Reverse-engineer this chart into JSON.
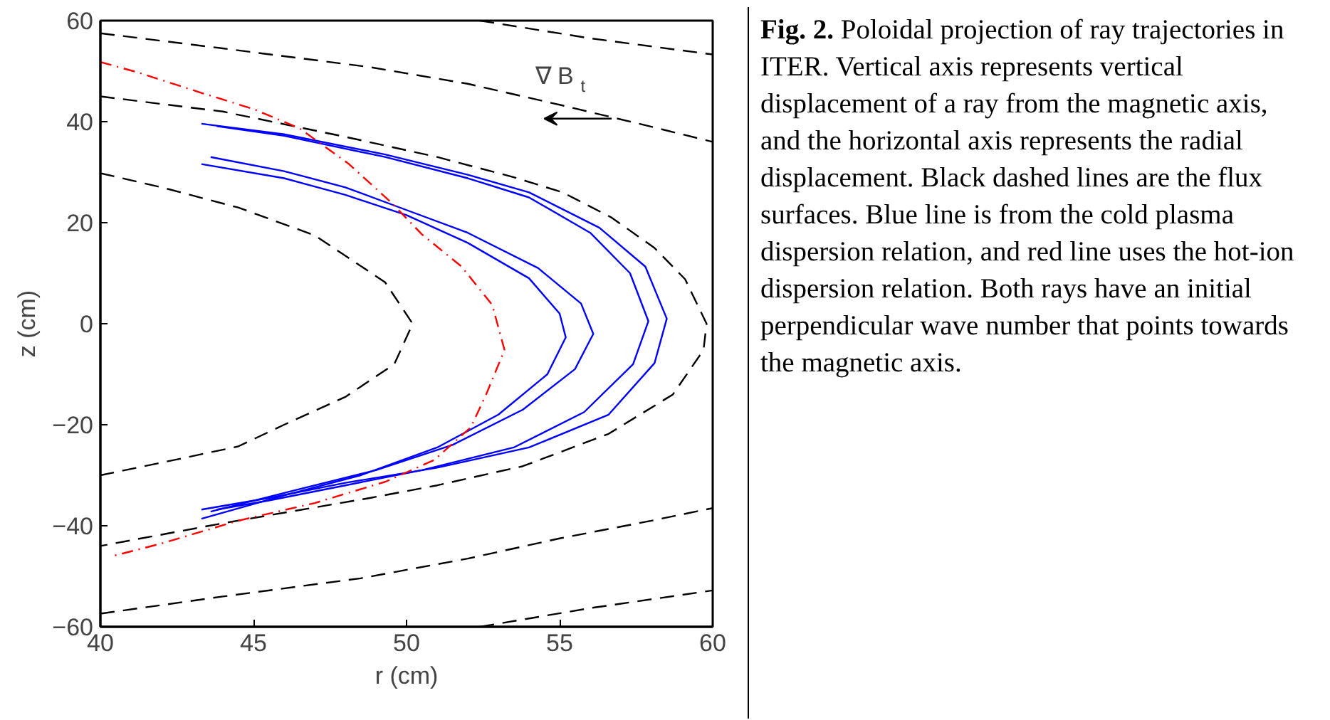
{
  "chart_data": {
    "type": "line",
    "xlabel": "r (cm)",
    "ylabel": "z (cm)",
    "xlim": [
      40,
      60
    ],
    "xticks": [
      40,
      45,
      50,
      55,
      60
    ],
    "ylim": [
      -60,
      60
    ],
    "yticks": [
      {
        "value": -60,
        "label": "−60"
      },
      {
        "value": -40,
        "label": "−40"
      },
      {
        "value": -20,
        "label": "−20"
      },
      0,
      20,
      40,
      60
    ],
    "grid": false,
    "annotations": [
      "∇ B$_{t}$",
      "Fig. 2.",
      "Poloidal projection of ray trajectories in ITER. Vertical axis represents vertical displacement of a ray from the magnetic axis, and the horizontal axis represents the radial displacement. Black dashed lines are the flux surfaces. Blue line is from the cold plasma dispersion relation, and red line uses the hot-ion dispersion relation. Both rays have an initial perpendicular wave number that points towards the magnetic axis."
    ],
    "series": [
      {
        "color": "#000000",
        "line_style": "dashed",
        "x": [
          52.4,
          56,
          60
        ],
        "values": [
          60,
          56.5,
          53.3
        ]
      },
      {
        "color": "#000000",
        "line_style": "dashed",
        "x": [
          52.4,
          56,
          60
        ],
        "values": [
          -60,
          -56.3,
          -52.8
        ]
      },
      {
        "color": "#000000",
        "line_style": "dashed",
        "x": [
          40,
          44,
          48.8,
          52,
          55.1,
          58,
          60
        ],
        "values": [
          57.5,
          54.5,
          50.8,
          47.5,
          43.2,
          39,
          36
        ]
      },
      {
        "color": "#000000",
        "line_style": "dashed",
        "x": [
          40,
          44,
          48.5,
          52,
          55,
          58,
          60
        ],
        "values": [
          -57.4,
          -54,
          -50.4,
          -46.5,
          -42.5,
          -39,
          -36.5
        ]
      },
      {
        "color": "#000000",
        "line_style": "dashed",
        "x": [
          40,
          44,
          48,
          51,
          53.5,
          55.1,
          56.7,
          58.1,
          59.1,
          59.8,
          59.7,
          58.7,
          56.6,
          53.8,
          51,
          48.8,
          44,
          40
        ],
        "values": [
          45,
          42,
          37,
          33,
          29,
          26,
          21,
          15,
          8.8,
          0,
          -5.2,
          -14,
          -21.8,
          -28.2,
          -32,
          -34.5,
          -39.5,
          -44
        ]
      },
      {
        "color": "#000000",
        "line_style": "dashed",
        "x": [
          40,
          42,
          44.5,
          47,
          49.3,
          50.2,
          49.6,
          48,
          46,
          44.5,
          42,
          40
        ],
        "values": [
          29.8,
          27,
          23,
          17.5,
          8.2,
          0,
          -8,
          -14.5,
          -20,
          -24.3,
          -27.5,
          -30
        ]
      },
      {
        "color": "#0000ff",
        "line_style": "solid",
        "x": [
          43.3,
          46,
          49.3,
          52,
          54,
          56.3,
          57.8,
          58.5,
          58.1,
          56.6,
          54,
          51,
          48,
          45.5,
          43.3
        ],
        "values": [
          39.6,
          37.5,
          33.5,
          29.5,
          26,
          19,
          11.3,
          1,
          -7.8,
          -18,
          -24.5,
          -28.5,
          -31.5,
          -34.5,
          -36.8
        ]
      },
      {
        "color": "#0000ff",
        "line_style": "solid",
        "x": [
          43.8,
          46,
          49.3,
          52,
          54,
          56,
          57.3,
          57.9,
          57.4,
          55.8,
          53.5,
          50.5,
          48,
          45.5,
          43.8
        ],
        "values": [
          39.1,
          37.2,
          33,
          28.8,
          25,
          18,
          10,
          0.5,
          -8,
          -17.5,
          -24.5,
          -29,
          -32,
          -35,
          -36.8
        ]
      },
      {
        "color": "#0000ff",
        "line_style": "solid",
        "x": [
          43.6,
          46,
          48,
          50,
          52,
          54.3,
          55.7,
          56.1,
          55.5,
          53.8,
          51.5,
          49,
          46,
          43.6
        ],
        "values": [
          33,
          30.2,
          27,
          22.5,
          18,
          11,
          4,
          -2,
          -9,
          -17,
          -24,
          -29,
          -33.5,
          -37.2
        ]
      },
      {
        "color": "#0000ff",
        "line_style": "solid",
        "x": [
          43.3,
          46,
          48,
          50,
          52,
          54,
          55,
          55.2,
          54.6,
          53,
          51,
          48.5,
          46,
          43.3
        ],
        "values": [
          31.6,
          28.8,
          25.5,
          21.5,
          16,
          9,
          2,
          -2.7,
          -10,
          -18,
          -24.5,
          -30,
          -34,
          -38.6
        ]
      },
      {
        "color": "#ff0000",
        "line_style": "dashdot",
        "x": [
          40,
          41.2,
          43.3,
          45,
          46.5,
          48.1,
          49.5,
          50.5,
          51.8,
          52.8,
          53.2,
          52.6,
          52.1,
          50.9,
          49.3,
          47,
          44.5,
          42,
          40.4
        ],
        "values": [
          51.8,
          49.8,
          45.7,
          42.5,
          38.7,
          31.7,
          24,
          17.7,
          11.3,
          3.7,
          -5.2,
          -14,
          -20.5,
          -27,
          -31.3,
          -35.5,
          -39,
          -43.5,
          -46
        ]
      }
    ]
  }
}
